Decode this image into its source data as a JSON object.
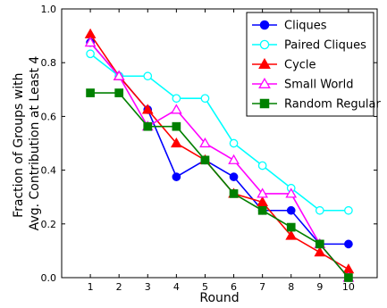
{
  "chart_data": {
    "type": "line",
    "xlabel": "Round",
    "ylabel": "Fraction of Groups with Avg. Contribution at Least 4",
    "ylabel_lines": [
      "Fraction of Groups with",
      "Avg. Contribution at Least 4"
    ],
    "x": [
      1,
      2,
      3,
      4,
      5,
      6,
      7,
      8,
      9,
      10
    ],
    "xlim": [
      0,
      11
    ],
    "ylim": [
      0.0,
      1.0
    ],
    "x_ticks": [
      "1",
      "2",
      "3",
      "4",
      "5",
      "6",
      "7",
      "8",
      "9",
      "10"
    ],
    "y_ticks": [
      "0.0",
      "0.2",
      "0.4",
      "0.6",
      "0.8",
      "1.0"
    ],
    "grid": false,
    "legend_position": "top-right",
    "series": [
      {
        "name": "Cliques",
        "color": "#0000ff",
        "marker": "circle",
        "filled": true,
        "values": [
          0.875,
          0.75,
          0.625,
          0.375,
          0.4375,
          0.375,
          0.25,
          0.25,
          0.125,
          0.125
        ]
      },
      {
        "name": "Paired Cliques",
        "color": "#00ffff",
        "marker": "circle",
        "filled": false,
        "values": [
          0.833,
          0.75,
          0.75,
          0.667,
          0.667,
          0.5,
          0.417,
          0.333,
          0.25,
          0.25
        ]
      },
      {
        "name": "Cycle",
        "color": "#ff0000",
        "marker": "triangle",
        "filled": true,
        "values": [
          0.906,
          0.75,
          0.625,
          0.5,
          0.4375,
          0.3125,
          0.281,
          0.156,
          0.094,
          0.031
        ]
      },
      {
        "name": "Small World",
        "color": "#ff00ff",
        "marker": "triangle",
        "filled": false,
        "values": [
          0.875,
          0.75,
          0.5625,
          0.625,
          0.5,
          0.4375,
          0.3125,
          0.3125,
          0.125,
          0.0
        ]
      },
      {
        "name": "Random Regular",
        "color": "#008000",
        "marker": "square",
        "filled": true,
        "values": [
          0.6875,
          0.6875,
          0.5625,
          0.5625,
          0.4375,
          0.3125,
          0.25,
          0.1875,
          0.125,
          0.0
        ]
      }
    ]
  }
}
